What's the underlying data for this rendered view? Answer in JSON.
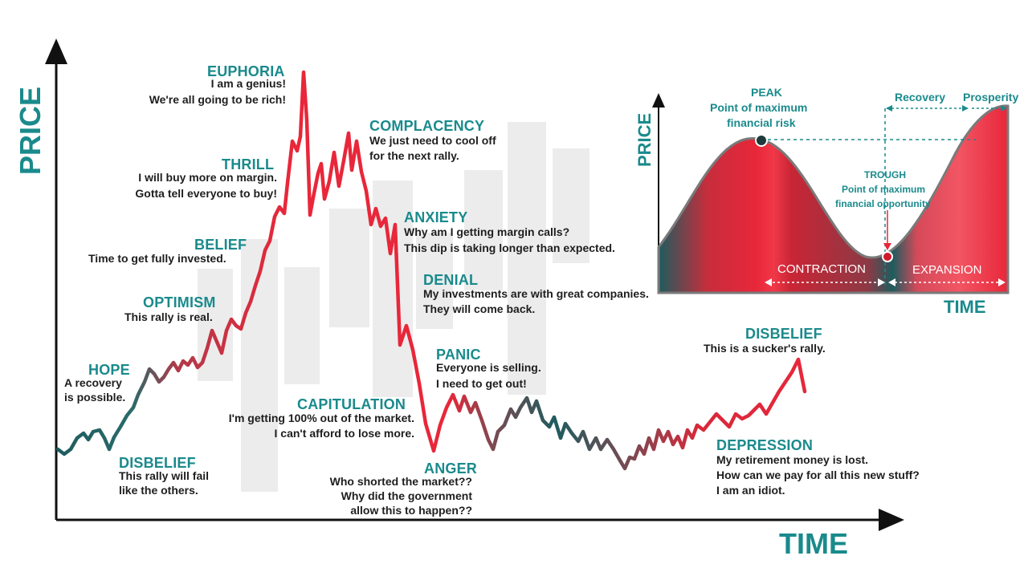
{
  "colors": {
    "teal": "#1a8a8c",
    "red": "#e8273a",
    "dark_teal": "#1e5c5e",
    "ink": "#1e1e1e",
    "bg_bars": "#ededed"
  },
  "axes": {
    "y_label": "PRICE",
    "x_label": "TIME"
  },
  "stages": [
    {
      "id": "disbelief-early",
      "title": "DISBELIEF",
      "lines": [
        "This rally will fail",
        "like the others."
      ]
    },
    {
      "id": "hope",
      "title": "HOPE",
      "lines": [
        "A recovery",
        "is possible."
      ]
    },
    {
      "id": "optimism",
      "title": "OPTIMISM",
      "lines": [
        "This rally is real."
      ]
    },
    {
      "id": "belief",
      "title": "BELIEF",
      "lines": [
        "Time to get fully invested."
      ]
    },
    {
      "id": "thrill",
      "title": "THRILL",
      "lines": [
        "I will buy more on margin.",
        "Gotta tell everyone to buy!"
      ]
    },
    {
      "id": "euphoria",
      "title": "EUPHORIA",
      "lines": [
        "I am a genius!",
        "We're all going to be rich!"
      ]
    },
    {
      "id": "complacency",
      "title": "COMPLACENCY",
      "lines": [
        "We just need to cool off",
        "for the next rally."
      ]
    },
    {
      "id": "anxiety",
      "title": "ANXIETY",
      "lines": [
        "Why am I getting margin calls?",
        "This dip is taking longer than expected."
      ]
    },
    {
      "id": "denial",
      "title": "DENIAL",
      "lines": [
        "My investments are with great companies.",
        "They will come back."
      ]
    },
    {
      "id": "panic",
      "title": "PANIC",
      "lines": [
        "Everyone is selling.",
        "I need to get out!"
      ]
    },
    {
      "id": "capitulation",
      "title": "CAPITULATION",
      "lines": [
        "I'm getting 100% out of the market.",
        "I can't afford to lose more."
      ]
    },
    {
      "id": "anger",
      "title": "ANGER",
      "lines": [
        "Who shorted the market??",
        "Why did the government",
        "allow this to happen??"
      ]
    },
    {
      "id": "depression",
      "title": "DEPRESSION",
      "lines": [
        "My retirement money is lost.",
        "How can we pay for all this new stuff?",
        "I am an idiot."
      ]
    },
    {
      "id": "disbelief-late",
      "title": "DISBELIEF",
      "lines": [
        "This is a sucker's rally."
      ]
    }
  ],
  "inset": {
    "y_label": "PRICE",
    "x_label": "TIME",
    "peak_title": "PEAK",
    "peak_lines": [
      "Point of maximum",
      "financial risk"
    ],
    "trough_title": "TROUGH",
    "trough_lines": [
      "Point of maximum",
      "financial opportunity"
    ],
    "recovery": "Recovery",
    "prosperity": "Prosperity",
    "contraction": "CONTRACTION",
    "expansion": "EXPANSION"
  }
}
